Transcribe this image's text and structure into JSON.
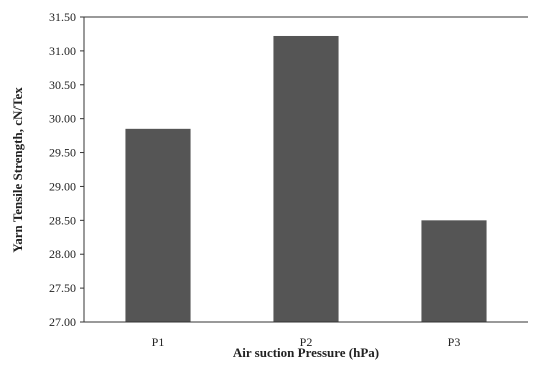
{
  "chart_data": {
    "type": "bar",
    "categories": [
      "P1",
      "P2",
      "P3"
    ],
    "values": [
      29.85,
      31.22,
      28.5
    ],
    "xlabel": "Air suction Pressure (hPa)",
    "ylabel": "Yarn Tensile Strength, cN/Tex",
    "ylim": [
      27.0,
      31.5
    ],
    "yticks": [
      "27.00",
      "27.50",
      "28.00",
      "28.50",
      "29.00",
      "29.50",
      "30.00",
      "30.50",
      "31.00",
      "31.50"
    ],
    "bar_color": "#555555",
    "grid": false
  }
}
